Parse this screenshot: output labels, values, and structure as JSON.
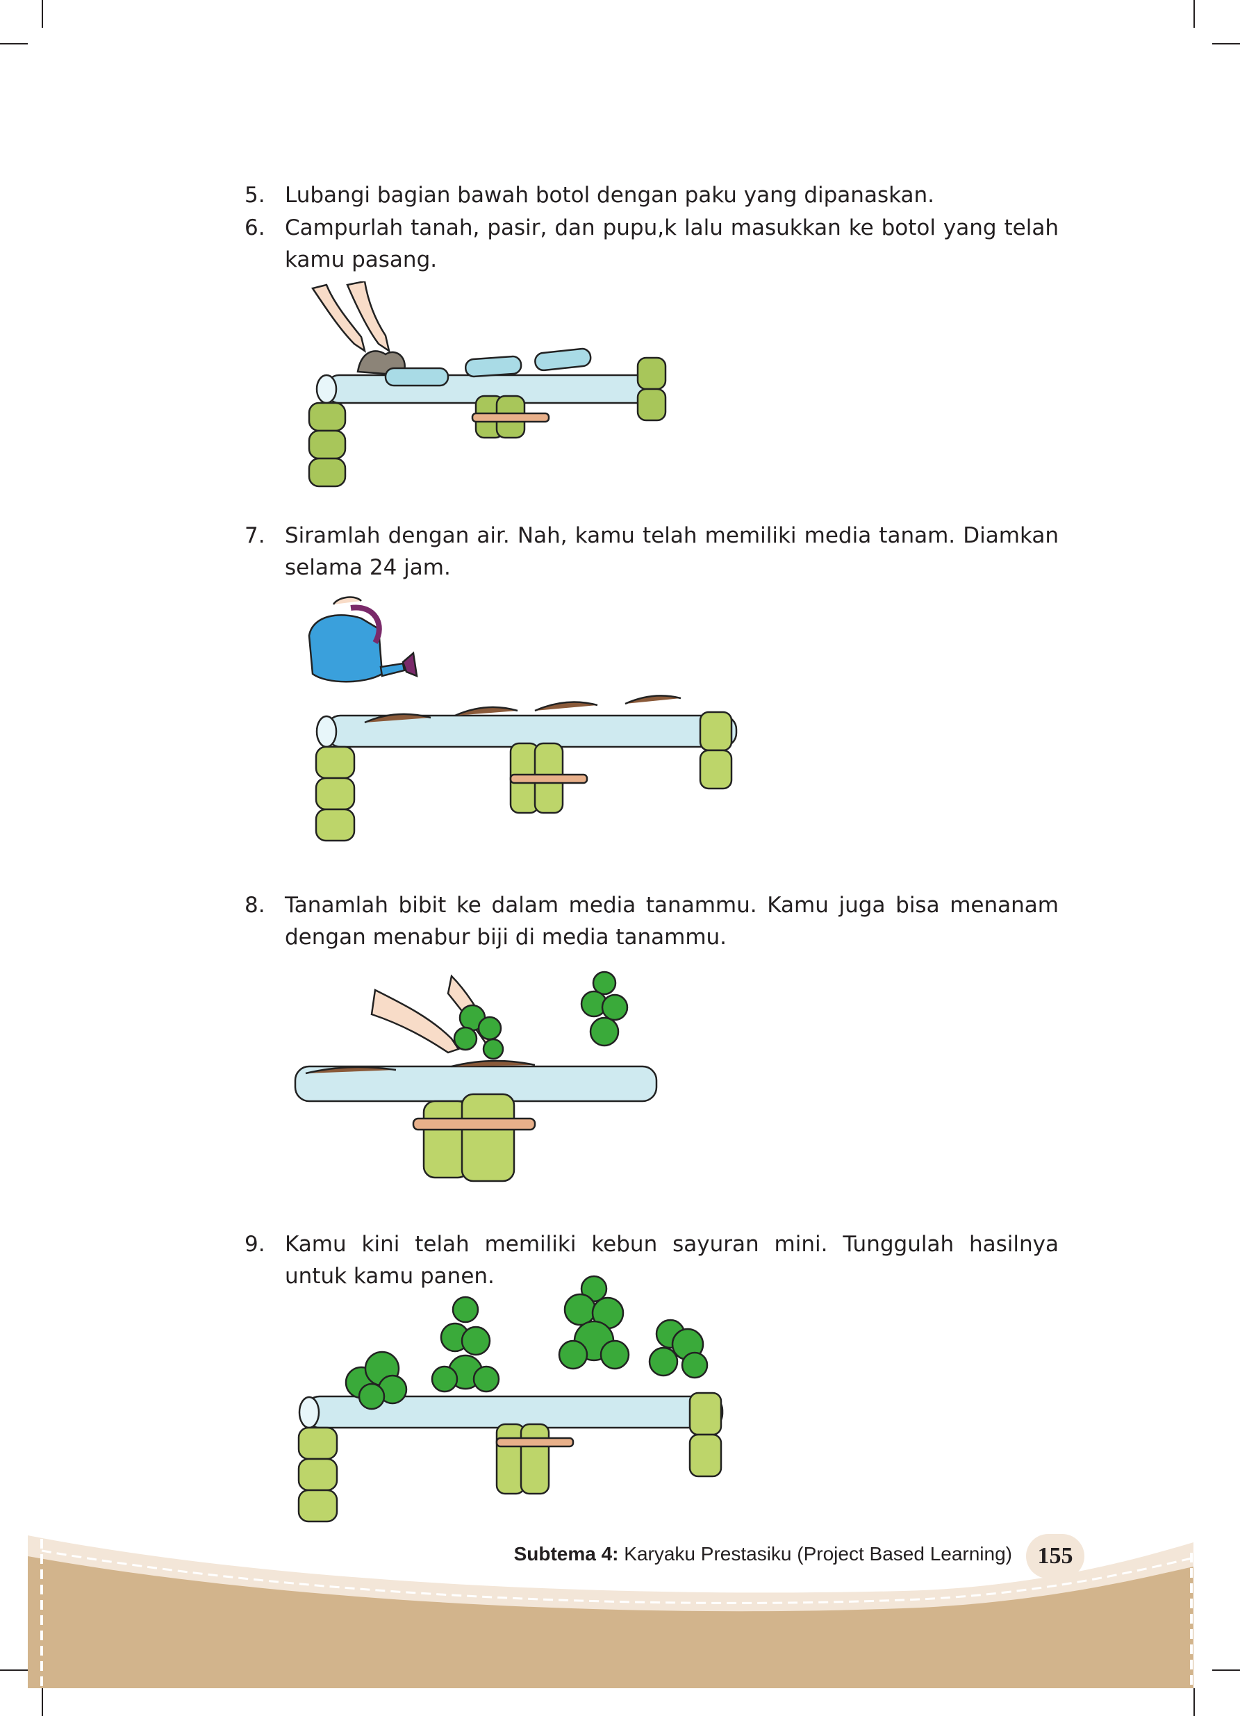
{
  "steps": [
    {
      "num": "5.",
      "text": "Lubangi bagian bawah botol dengan paku yang dipanaskan."
    },
    {
      "num": "6.",
      "text": "Campurlah tanah, pasir, dan pupu,k lalu masukkan ke botol yang telah kamu pasang."
    },
    {
      "num": "7.",
      "text": "Siramlah dengan air. Nah, kamu telah memiliki media tanam. Diamkan selama 24 jam."
    },
    {
      "num": "8.",
      "text": "Tanamlah bibit ke dalam media tanammu. Kamu juga bisa menanam dengan menabur biji di media tanammu."
    },
    {
      "num": "9.",
      "text": "Kamu kini telah memiliki kebun sayuran mini. Tunggulah hasilnya untuk kamu panen."
    }
  ],
  "footer": {
    "subtheme_label": "Subtema 4:",
    "subtheme_title": " Karyaku Prestasiku (Project Based Learning)",
    "page_number": "155"
  },
  "colors": {
    "bottle": "#cfeaf0",
    "stand": "#a8c65a",
    "soil": "#8a5a3a",
    "plant": "#3aaa3a",
    "can": "#3aa0dc",
    "footer_band": "#d2b48c"
  }
}
